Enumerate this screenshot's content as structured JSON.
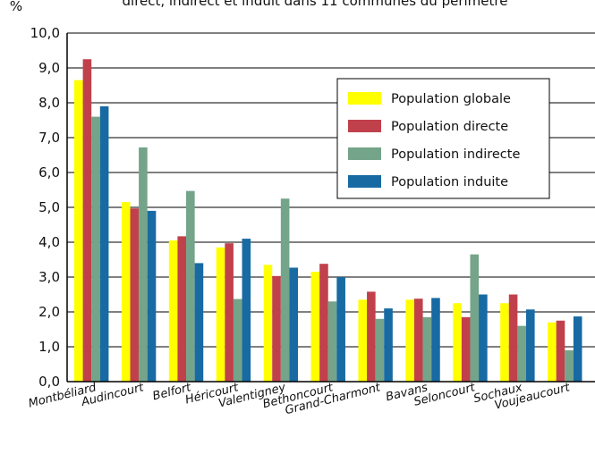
{
  "chart_data": {
    "type": "bar",
    "title": "direct, indirect et induit dans 11 communes du périmètre",
    "ylabel": "%",
    "xlabel": "",
    "ylim": [
      0,
      10
    ],
    "yticks": [
      "0,0",
      "1,0",
      "2,0",
      "3,0",
      "4,0",
      "5,0",
      "6,0",
      "7,0",
      "8,0",
      "9,0",
      "10,0"
    ],
    "categories": [
      "Montbéliard",
      "Audincourt",
      "Belfort",
      "Héricourt",
      "Valentigney",
      "Bethoncourt",
      "Grand-Charmont",
      "Bavans",
      "Seloncourt",
      "Sochaux",
      "Voujeaucourt"
    ],
    "series": [
      {
        "name": "Population globale",
        "color": "#ffff00",
        "values": [
          8.65,
          5.15,
          4.05,
          3.85,
          3.35,
          3.15,
          2.35,
          2.35,
          2.25,
          2.25,
          1.7
        ]
      },
      {
        "name": "Population directe",
        "color": "#c0414b",
        "values": [
          9.25,
          4.97,
          4.17,
          3.97,
          3.03,
          3.38,
          2.58,
          2.38,
          1.85,
          2.5,
          1.75
        ]
      },
      {
        "name": "Population indirecte",
        "color": "#74a489",
        "values": [
          7.6,
          6.72,
          5.47,
          2.37,
          5.25,
          2.3,
          1.8,
          1.85,
          3.65,
          1.6,
          0.9
        ]
      },
      {
        "name": "Population induite",
        "color": "#186aa3",
        "values": [
          7.9,
          4.9,
          3.4,
          4.1,
          3.27,
          3.0,
          2.1,
          2.4,
          2.5,
          2.07,
          1.87
        ]
      }
    ],
    "legend": "top-right"
  }
}
